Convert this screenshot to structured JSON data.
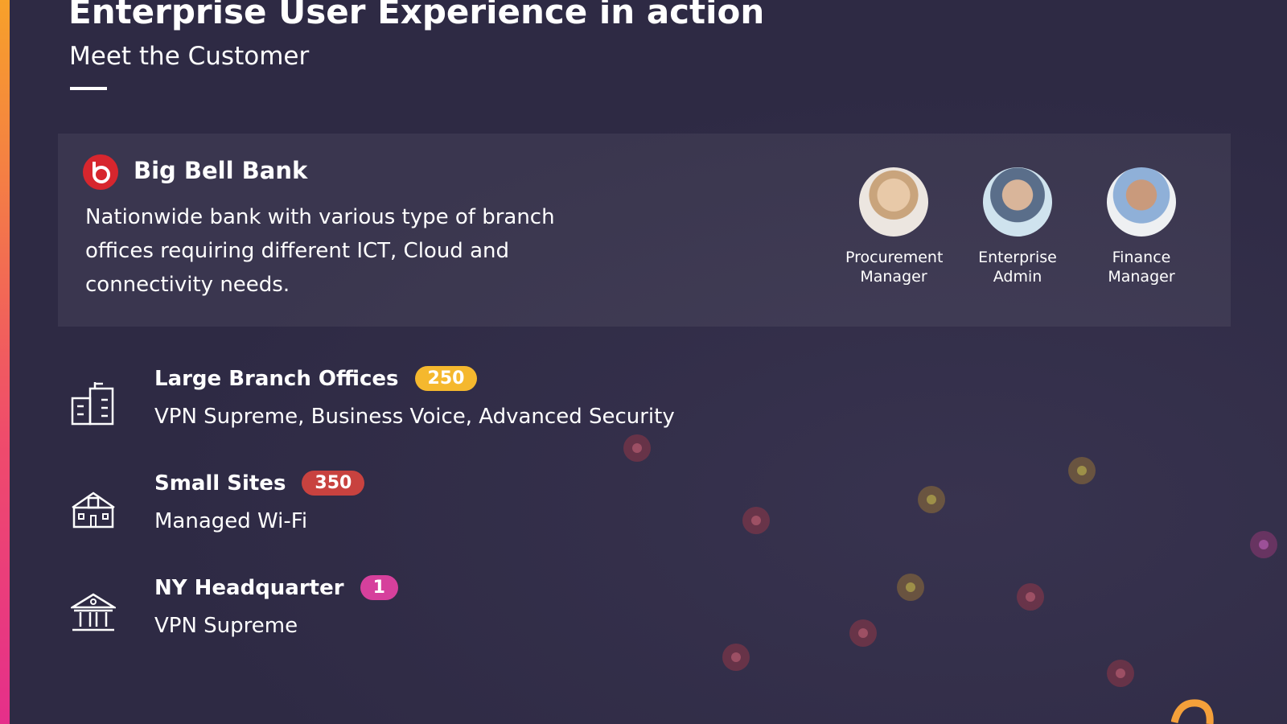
{
  "header": {
    "title": "Enterprise User Experience in action",
    "subtitle": "Meet the Customer"
  },
  "customer": {
    "name": "Big Bell Bank",
    "description": "Nationwide bank with various type of branch offices requiring different ICT, Cloud and connectivity needs."
  },
  "personas": [
    {
      "label": "Procurement Manager"
    },
    {
      "label": "Enterprise Admin"
    },
    {
      "label": "Finance Manager"
    }
  ],
  "sites": [
    {
      "name": "Large Branch Offices",
      "count": 250,
      "services": "VPN Supreme, Business Voice, Advanced Security"
    },
    {
      "name": "Small Sites",
      "count": 350,
      "services": "Managed Wi-Fi"
    },
    {
      "name": "NY Headquarter",
      "count": 1,
      "services": "VPN Supreme"
    }
  ]
}
